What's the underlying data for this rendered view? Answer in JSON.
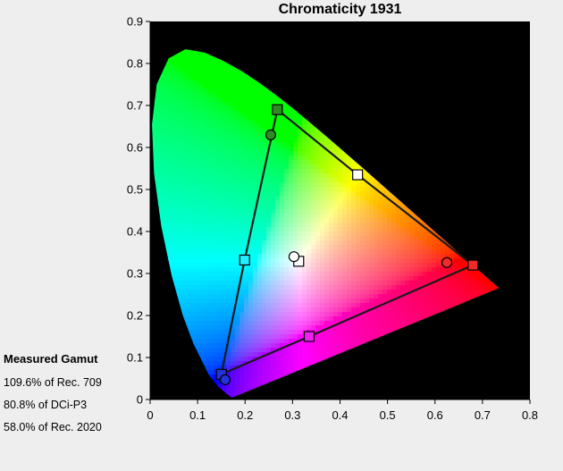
{
  "chart_data": {
    "type": "scatter",
    "title": "Chromaticity 1931",
    "xlabel": "",
    "ylabel": "",
    "xlim": [
      0,
      0.8
    ],
    "ylim": [
      0,
      0.9
    ],
    "xticks": [
      "0",
      "0.1",
      "0.2",
      "0.3",
      "0.4",
      "0.5",
      "0.6",
      "0.7",
      "0.8"
    ],
    "yticks": [
      "0",
      "0.1",
      "0.2",
      "0.3",
      "0.4",
      "0.5",
      "0.6",
      "0.7",
      "0.8",
      "0.9"
    ],
    "grid": false,
    "plot_background": "#000000",
    "spectral_locus": [
      [
        0.1741,
        0.005
      ],
      [
        0.1738,
        0.0049
      ],
      [
        0.1733,
        0.0048
      ],
      [
        0.1726,
        0.0048
      ],
      [
        0.1714,
        0.0051
      ],
      [
        0.1689,
        0.0069
      ],
      [
        0.1644,
        0.0109
      ],
      [
        0.1566,
        0.0177
      ],
      [
        0.144,
        0.0297
      ],
      [
        0.1241,
        0.0578
      ],
      [
        0.0913,
        0.1327
      ],
      [
        0.0687,
        0.2007
      ],
      [
        0.0454,
        0.295
      ],
      [
        0.0235,
        0.4127
      ],
      [
        0.0082,
        0.5384
      ],
      [
        0.0039,
        0.6548
      ],
      [
        0.0139,
        0.7502
      ],
      [
        0.0389,
        0.812
      ],
      [
        0.0743,
        0.8338
      ],
      [
        0.1142,
        0.8262
      ],
      [
        0.1547,
        0.8059
      ],
      [
        0.1929,
        0.7816
      ],
      [
        0.2296,
        0.7543
      ],
      [
        0.2658,
        0.7243
      ],
      [
        0.3016,
        0.6923
      ],
      [
        0.3373,
        0.6589
      ],
      [
        0.3731,
        0.6245
      ],
      [
        0.4087,
        0.5896
      ],
      [
        0.4441,
        0.5547
      ],
      [
        0.4788,
        0.5202
      ],
      [
        0.5125,
        0.4866
      ],
      [
        0.5448,
        0.4544
      ],
      [
        0.5752,
        0.4242
      ],
      [
        0.6029,
        0.3965
      ],
      [
        0.627,
        0.3725
      ],
      [
        0.6482,
        0.3514
      ],
      [
        0.6658,
        0.334
      ],
      [
        0.6801,
        0.3197
      ],
      [
        0.6915,
        0.3083
      ],
      [
        0.7006,
        0.2993
      ],
      [
        0.7079,
        0.292
      ],
      [
        0.714,
        0.2859
      ],
      [
        0.719,
        0.2809
      ],
      [
        0.723,
        0.277
      ],
      [
        0.726,
        0.274
      ],
      [
        0.7283,
        0.2717
      ],
      [
        0.73,
        0.27
      ],
      [
        0.732,
        0.268
      ],
      [
        0.7347,
        0.2653
      ]
    ],
    "series": [
      {
        "name": "",
        "marker": "square",
        "closed": true,
        "points": [
          {
            "x": 0.268,
            "y": 0.69,
            "color": "#2e8b22"
          },
          {
            "x": 0.437,
            "y": 0.535,
            "color": "#ffffff"
          },
          {
            "x": 0.68,
            "y": 0.32,
            "color": "#ee2a2a"
          },
          {
            "x": 0.335,
            "y": 0.15,
            "color": "#f020f0"
          },
          {
            "x": 0.15,
            "y": 0.06,
            "color": "#2233dd"
          },
          {
            "x": 0.199,
            "y": 0.332,
            "color": "#22eeff"
          }
        ]
      },
      {
        "name": "",
        "marker": "square",
        "closed": false,
        "points": [
          {
            "x": 0.313,
            "y": 0.329,
            "color": "#ffffff"
          }
        ]
      },
      {
        "name": "",
        "marker": "circle",
        "closed": false,
        "points": [
          {
            "x": 0.254,
            "y": 0.63,
            "color": "#2e8b22"
          },
          {
            "x": 0.625,
            "y": 0.326,
            "color": "#ee2a2a"
          },
          {
            "x": 0.158,
            "y": 0.047,
            "color": "#2233dd"
          },
          {
            "x": 0.303,
            "y": 0.34,
            "color": "#ffffff"
          }
        ]
      }
    ]
  },
  "gamut": {
    "heading": "Measured Gamut",
    "lines": [
      "109.6% of Rec. 709",
      "80.8% of DCi-P3",
      "58.0% of Rec. 2020"
    ]
  }
}
